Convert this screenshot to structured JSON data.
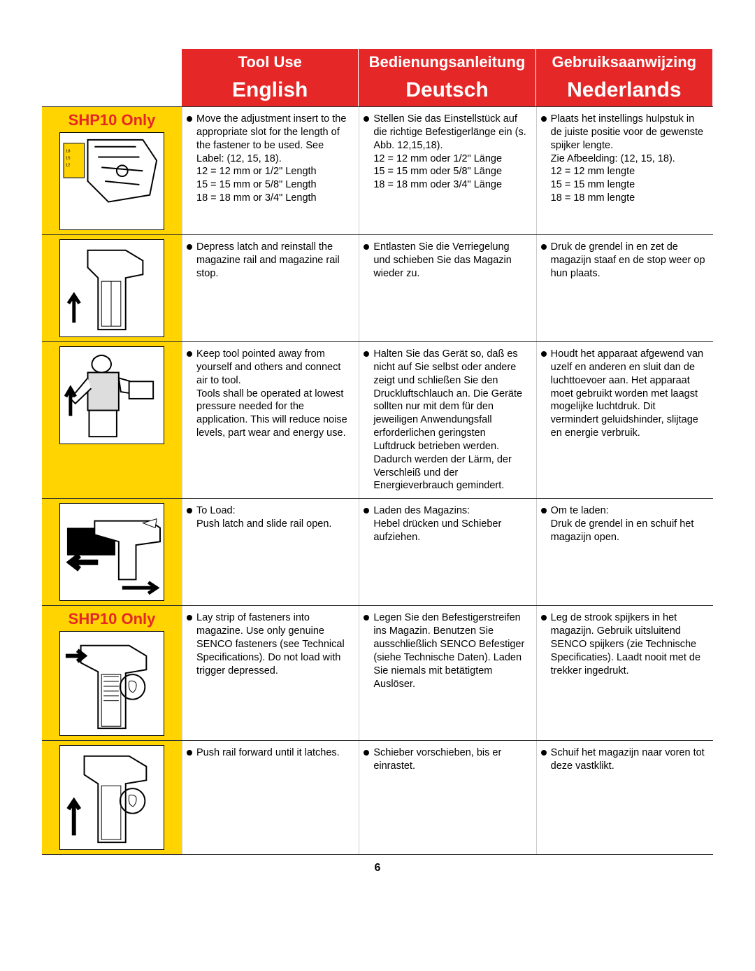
{
  "header": {
    "top": [
      "Tool Use",
      "Bedienungsanleitung",
      "Gebruiksaanwijzing"
    ],
    "bottom": [
      "English",
      "Deutsch",
      "Nederlands"
    ]
  },
  "rows": [
    {
      "shp": "SHP10 Only",
      "diagram_height": 140,
      "en": "Move the adjustment insert to the appropriate slot for the length of the fastener to be used. See Label: (12, 15, 18).\n12 = 12 mm or 1/2\" Length\n15 = 15 mm or 5/8\" Length\n18 = 18 mm or 3/4\" Length",
      "de": "Stellen Sie das Einstellstück auf die richtige Befestigerlänge ein (s. Abb. 12,15,18).\n12 = 12 mm oder 1/2\" Länge\n15 = 15 mm oder 5/8\" Länge\n18 = 18 mm oder 3/4\" Länge",
      "nl": "Plaats het instellings hulpstuk in de juiste positie voor de gewenste spijker lengte.\nZie Afbeelding: (12, 15, 18).\n12 = 12 mm lengte\n15 = 15 mm lengte\n18 = 18 mm lengte"
    },
    {
      "shp": "",
      "diagram_height": 140,
      "en": "Depress latch and reinstall the magazine rail and magazine rail stop.",
      "de": "Entlasten Sie die Verriegelung und schieben Sie das Magazin wieder zu.",
      "nl": "Druk de grendel in en zet de magazijn staaf en de stop weer op hun plaats."
    },
    {
      "shp": "",
      "diagram_height": 140,
      "en": "Keep tool pointed away from yourself and others and connect air to tool.\nTools shall be operated at lowest pressure needed for the application. This will reduce noise levels, part wear and energy use.",
      "de": "Halten Sie das Gerät so, daß es nicht auf Sie selbst oder andere zeigt und schließen Sie den Druckluftschlauch an. Die Geräte sollten nur mit dem für den jeweiligen Anwendungsfall erforderlichen geringsten Luftdruck betrieben werden. Dadurch werden der Lärm, der Verschleiß und der Energieverbrauch gemindert.",
      "nl": "Houdt het apparaat afgewend van uzelf en anderen en sluit dan de luchttoevoer aan. Het apparaat moet gebruikt worden met laagst mogelijke luchtdruk. Dit vermindert geluidshinder, slijtage en energie verbruik."
    },
    {
      "shp": "",
      "diagram_height": 140,
      "en": "To Load:\nPush latch and slide rail open.",
      "de": "Laden des Magazins:\nHebel drücken und Schieber aufziehen.",
      "nl": "Om te laden:\nDruk de grendel in en schuif het magazijn open."
    },
    {
      "shp": "SHP10 Only",
      "diagram_height": 150,
      "en": "Lay strip of fasteners into magazine. Use only genuine SENCO fasteners (see Technical Specifications). Do not load with trigger depressed.",
      "de": "Legen Sie den Befestigerstreifen ins Magazin. Benutzen Sie ausschließlich SENCO Befestiger (siehe Technische Daten). Laden Sie niemals mit betätigtem Auslöser.",
      "nl": "Leg de strook spijkers in het magazijn. Gebruik uitsluitend SENCO spijkers (zie Technische Specificaties). Laadt nooit met de trekker ingedrukt."
    },
    {
      "shp": "",
      "diagram_height": 150,
      "en": "Push rail forward until it latches.",
      "de": "Schieber vorschieben, bis er einrastet.",
      "nl": "Schuif het magazijn naar voren tot deze vastklikt."
    }
  ],
  "page_number": "6",
  "colors": {
    "yellow": "#ffd400",
    "red": "#e52728"
  }
}
